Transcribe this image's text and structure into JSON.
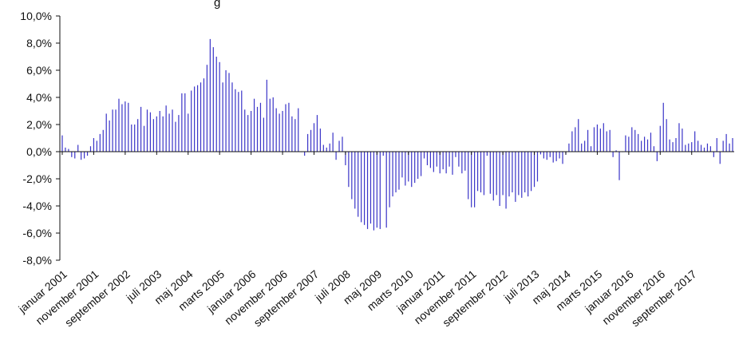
{
  "chart_data": {
    "type": "bar",
    "title_fragment": "g",
    "y_tick_labels": [
      "10,0%",
      "8,0%",
      "6,0%",
      "4,0%",
      "2,0%",
      "0,0%",
      "-2,0%",
      "-4,0%",
      "-6,0%",
      "-8,0%"
    ],
    "y_tick_values": [
      10,
      8,
      6,
      4,
      2,
      0,
      -2,
      -4,
      -6,
      -8
    ],
    "ylim": [
      -8,
      10
    ],
    "x_tick_labels": [
      "januar 2001",
      "november 2001",
      "september 2002",
      "juli 2003",
      "maj 2004",
      "marts 2005",
      "januar 2006",
      "november 2006",
      "september 2007",
      "juli 2008",
      "maj 2009",
      "marts 2010",
      "januar 2011",
      "november 2011",
      "september 2012",
      "juli 2013",
      "maj 2014",
      "marts 2015",
      "januar 2016",
      "november 2016",
      "september 2017"
    ],
    "x_tick_index": [
      0,
      10,
      20,
      30,
      40,
      50,
      60,
      70,
      80,
      90,
      100,
      110,
      120,
      130,
      140,
      150,
      160,
      170,
      180,
      190,
      200
    ],
    "grid": false,
    "legend": "none",
    "bar_color": "#3a34c8",
    "values": [
      1.2,
      0.3,
      0.2,
      -0.4,
      -0.5,
      0.5,
      -0.6,
      -0.5,
      -0.3,
      0.4,
      1.0,
      0.8,
      1.3,
      1.6,
      2.8,
      2.3,
      3.1,
      3.1,
      3.9,
      3.5,
      3.7,
      3.6,
      2.0,
      2.0,
      2.4,
      3.3,
      1.9,
      3.1,
      2.9,
      2.4,
      2.6,
      3.0,
      2.6,
      3.4,
      2.8,
      3.1,
      2.2,
      2.7,
      4.3,
      4.3,
      2.8,
      4.5,
      4.8,
      4.9,
      5.1,
      5.4,
      6.4,
      8.3,
      7.7,
      7.0,
      6.6,
      5.1,
      6.0,
      5.8,
      5.1,
      4.6,
      4.4,
      4.5,
      3.1,
      2.7,
      3.0,
      3.9,
      3.3,
      3.6,
      2.5,
      5.3,
      3.9,
      4.0,
      3.2,
      2.8,
      3.0,
      3.5,
      3.6,
      2.6,
      2.4,
      3.2,
      0.0,
      -0.3,
      1.3,
      1.6,
      2.1,
      2.7,
      1.7,
      0.5,
      0.3,
      0.6,
      1.4,
      -0.6,
      0.8,
      1.1,
      -1.0,
      -2.6,
      -3.5,
      -4.2,
      -4.8,
      -5.2,
      -5.4,
      -5.7,
      -5.3,
      -5.8,
      -5.6,
      -5.7,
      -0.3,
      -5.6,
      -4.1,
      -3.3,
      -3.0,
      -2.8,
      -1.9,
      -2.5,
      -2.2,
      -2.6,
      -2.3,
      -2.0,
      -1.8,
      -0.5,
      -1.0,
      -1.2,
      -1.5,
      -1.1,
      -1.6,
      -1.3,
      -1.6,
      -1.1,
      -1.7,
      -0.4,
      -1.1,
      -1.6,
      -1.4,
      -3.5,
      -4.1,
      -4.1,
      -2.9,
      -3.0,
      -3.2,
      -0.3,
      -3.1,
      -3.6,
      -3.2,
      -4.0,
      -3.2,
      -4.2,
      -3.3,
      -3.0,
      -3.7,
      -3.2,
      -3.4,
      -3.0,
      -3.3,
      -2.9,
      -2.6,
      -2.2,
      -0.2,
      -0.5,
      -0.6,
      -0.4,
      -0.8,
      -0.7,
      -0.5,
      -0.9,
      -0.2,
      0.6,
      1.5,
      1.8,
      2.4,
      0.6,
      0.8,
      1.6,
      0.4,
      1.8,
      2.0,
      1.7,
      2.1,
      1.5,
      1.6,
      -0.4,
      0.1,
      -2.1,
      0.0,
      1.2,
      1.1,
      1.8,
      1.6,
      1.3,
      0.8,
      1.1,
      0.9,
      1.4,
      0.4,
      -0.7,
      1.9,
      3.6,
      2.4,
      0.9,
      0.7,
      1.0,
      2.1,
      1.7,
      0.5,
      0.6,
      0.7,
      1.5,
      0.8,
      0.5,
      0.3,
      0.6,
      0.4,
      -0.4,
      1.0,
      -0.9,
      0.8,
      1.3,
      0.6,
      1.0
    ]
  }
}
